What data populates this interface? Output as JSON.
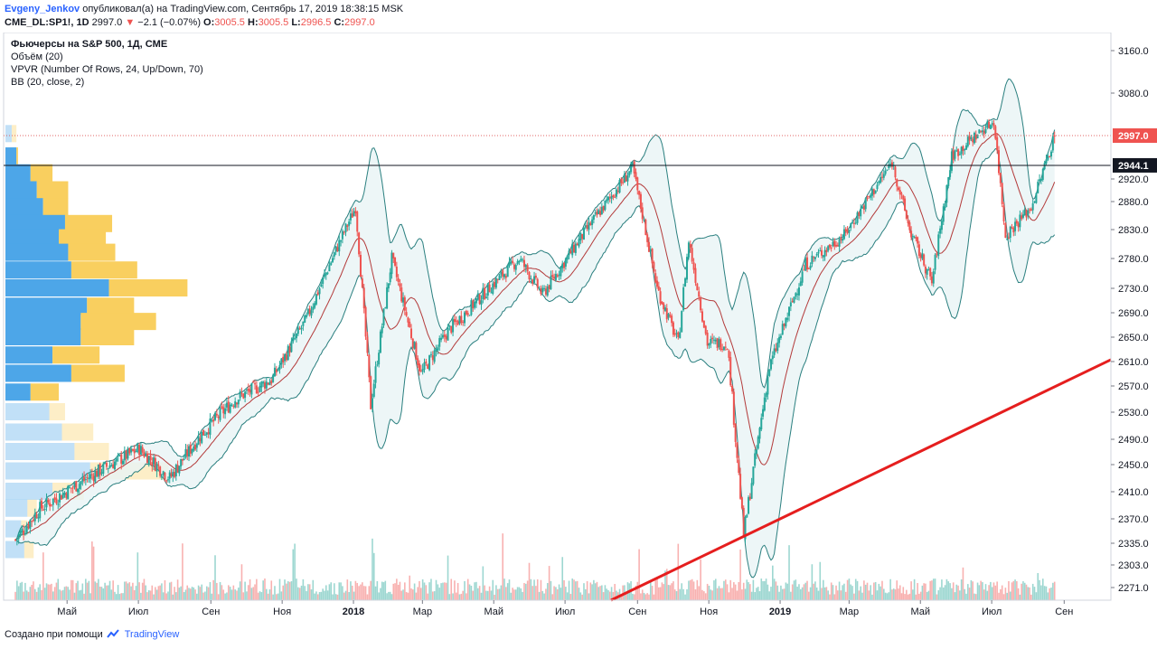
{
  "header": {
    "author": "Evgeny_Jenkov",
    "published_text": "опубликовал(а) на TradingView.com, Сентябрь 17, 2019 18:38:15 MSK",
    "symbol": "CME_DL:SP1!, 1D",
    "last": "2997.0",
    "change": "−2.1 (−0.07%)",
    "o_label": "O:",
    "o_value": "3005.5",
    "h_label": "H:",
    "h_value": "3005.5",
    "l_label": "L:",
    "l_value": "2996.5",
    "c_label": "C:",
    "c_value": "2997.0"
  },
  "legend": {
    "title": "Фьючерсы на S&P 500, 1Д, CME",
    "volume": "Объём (20)",
    "vpvr": "VPVR (Number Of Rows, 24, Up/Down, 70)",
    "bb": "BB (20, close, 2)"
  },
  "footer": {
    "created_with": "Создано при помощи",
    "brand": "TradingView"
  },
  "colors": {
    "up": "#26a69a",
    "down": "#ef5350",
    "bb_line": "#2a7f7f",
    "bb_mid": "#b33a3a",
    "bb_fill": "#e8f4f5",
    "vpvr_up": "#4da6e8",
    "vpvr_down": "#f9cf5f",
    "trendline": "#e51e1e",
    "price_line": "#e06666",
    "level_line": "#131722"
  },
  "chart_data": {
    "type": "candlestick",
    "title": "Фьючерсы на S&P 500, 1Д, CME",
    "y_axis_ticks": [
      3160,
      3080,
      2997,
      2944.1,
      2920,
      2880,
      2830,
      2780,
      2730,
      2690,
      2650,
      2610,
      2570,
      2530,
      2490,
      2450,
      2410,
      2370,
      2335,
      2303,
      2271
    ],
    "y_tick_labels": [
      "3160.0",
      "3080.0",
      "2920.0",
      "2880.0",
      "2830.0",
      "2780.0",
      "2730.0",
      "2690.0",
      "2650.0",
      "2610.0",
      "2570.0",
      "2530.0",
      "2490.0",
      "2450.0",
      "2410.0",
      "2370.0",
      "2335.0",
      "2303.0",
      "2271.0"
    ],
    "x_tick_labels": [
      "Май",
      "Июл",
      "Сен",
      "Ноя",
      "2018",
      "Мар",
      "Май",
      "Июл",
      "Сен",
      "Ноя",
      "2019",
      "Мар",
      "Май",
      "Июл",
      "Сен"
    ],
    "price_label": "2997.0",
    "level_label": "2944.1",
    "price_path": [
      [
        "2017-04-10",
        2340
      ],
      [
        "2017-05-01",
        2385
      ],
      [
        "2017-06-01",
        2420
      ],
      [
        "2017-06-20",
        2440
      ],
      [
        "2017-07-25",
        2475
      ],
      [
        "2017-08-20",
        2430
      ],
      [
        "2017-09-15",
        2495
      ],
      [
        "2017-10-15",
        2550
      ],
      [
        "2017-11-15",
        2580
      ],
      [
        "2017-12-15",
        2680
      ],
      [
        "2018-01-26",
        2870
      ],
      [
        "2018-02-08",
        2540
      ],
      [
        "2018-02-26",
        2780
      ],
      [
        "2018-03-23",
        2590
      ],
      [
        "2018-04-15",
        2660
      ],
      [
        "2018-05-15",
        2720
      ],
      [
        "2018-06-15",
        2780
      ],
      [
        "2018-07-05",
        2720
      ],
      [
        "2018-08-15",
        2840
      ],
      [
        "2018-09-20",
        2940
      ],
      [
        "2018-10-11",
        2730
      ],
      [
        "2018-10-29",
        2640
      ],
      [
        "2018-11-07",
        2810
      ],
      [
        "2018-11-23",
        2640
      ],
      [
        "2018-12-10",
        2640
      ],
      [
        "2018-12-24",
        2346
      ],
      [
        "2019-01-15",
        2600
      ],
      [
        "2019-02-15",
        2770
      ],
      [
        "2019-03-20",
        2820
      ],
      [
        "2019-04-30",
        2950
      ],
      [
        "2019-05-15",
        2830
      ],
      [
        "2019-06-03",
        2740
      ],
      [
        "2019-06-20",
        2960
      ],
      [
        "2019-07-26",
        3025
      ],
      [
        "2019-08-05",
        2820
      ],
      [
        "2019-08-27",
        2870
      ],
      [
        "2019-09-16",
        2997
      ]
    ],
    "horizontal_level": 2944.1,
    "last_price": 2997.0,
    "trendline": [
      [
        "2018-09-01",
        2255
      ],
      [
        "2019-10-30",
        2612
      ]
    ],
    "vpvr_rows": [
      {
        "price": 3000,
        "up": 2,
        "down": 1.5
      },
      {
        "price": 2960,
        "up": 3.5,
        "down": 0.5
      },
      {
        "price": 2930,
        "up": 8,
        "down": 7
      },
      {
        "price": 2900,
        "up": 10,
        "down": 10
      },
      {
        "price": 2870,
        "up": 12,
        "down": 8
      },
      {
        "price": 2840,
        "up": 19,
        "down": 15
      },
      {
        "price": 2815,
        "up": 17,
        "down": 15
      },
      {
        "price": 2790,
        "up": 20,
        "down": 15
      },
      {
        "price": 2760,
        "up": 21,
        "down": 21
      },
      {
        "price": 2730,
        "up": 33,
        "down": 25
      },
      {
        "price": 2700,
        "up": 26,
        "down": 15
      },
      {
        "price": 2675,
        "up": 24,
        "down": 24
      },
      {
        "price": 2650,
        "up": 24,
        "down": 17
      },
      {
        "price": 2620,
        "up": 15,
        "down": 15
      },
      {
        "price": 2590,
        "up": 21,
        "down": 17
      },
      {
        "price": 2560,
        "up": 8,
        "down": 9
      },
      {
        "price": 2530,
        "up": 14,
        "down": 5
      },
      {
        "price": 2500,
        "up": 18,
        "down": 10
      },
      {
        "price": 2470,
        "up": 22,
        "down": 11
      },
      {
        "price": 2440,
        "up": 27,
        "down": 25
      },
      {
        "price": 2410,
        "up": 15,
        "down": 10
      },
      {
        "price": 2385,
        "up": 7,
        "down": 3
      },
      {
        "price": 2355,
        "up": 5,
        "down": 2
      },
      {
        "price": 2325,
        "up": 6,
        "down": 3
      }
    ]
  }
}
